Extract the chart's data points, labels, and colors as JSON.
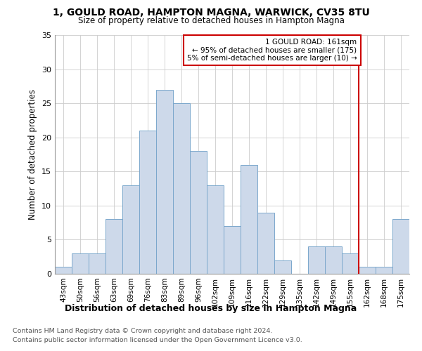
{
  "title": "1, GOULD ROAD, HAMPTON MAGNA, WARWICK, CV35 8TU",
  "subtitle": "Size of property relative to detached houses in Hampton Magna",
  "xlabel": "Distribution of detached houses by size in Hampton Magna",
  "ylabel": "Number of detached properties",
  "footnote1": "Contains HM Land Registry data © Crown copyright and database right 2024.",
  "footnote2": "Contains public sector information licensed under the Open Government Licence v3.0.",
  "categories": [
    "43sqm",
    "50sqm",
    "56sqm",
    "63sqm",
    "69sqm",
    "76sqm",
    "83sqm",
    "89sqm",
    "96sqm",
    "102sqm",
    "109sqm",
    "116sqm",
    "122sqm",
    "129sqm",
    "135sqm",
    "142sqm",
    "149sqm",
    "155sqm",
    "162sqm",
    "168sqm",
    "175sqm"
  ],
  "values": [
    1,
    3,
    3,
    8,
    13,
    21,
    27,
    25,
    18,
    13,
    7,
    16,
    9,
    2,
    0,
    4,
    4,
    3,
    1,
    1,
    8
  ],
  "bar_color": "#cdd9ea",
  "bar_edge_color": "#7ba7cc",
  "bg_color": "#ffffff",
  "plot_bg_color": "#ffffff",
  "grid_color": "#cccccc",
  "vline_idx": 18,
  "vline_color": "#cc0000",
  "annotation_line1": "1 GOULD ROAD: 161sqm",
  "annotation_line2": "← 95% of detached houses are smaller (175)",
  "annotation_line3": "5% of semi-detached houses are larger (10) →",
  "annotation_box_color": "#ffffff",
  "annotation_border_color": "#cc0000",
  "ylim": [
    0,
    35
  ],
  "yticks": [
    0,
    5,
    10,
    15,
    20,
    25,
    30,
    35
  ]
}
